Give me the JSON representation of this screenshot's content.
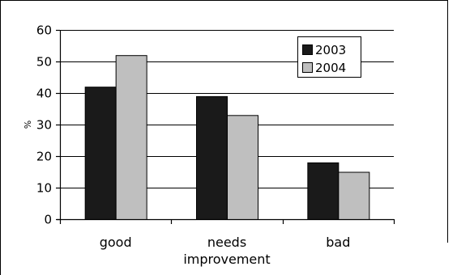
{
  "chart_data": {
    "type": "bar",
    "title": "",
    "xlabel": "",
    "ylabel": "%",
    "categories": [
      "good",
      "needs improvement",
      "bad"
    ],
    "category_lines": [
      [
        "good"
      ],
      [
        "needs",
        "improvement"
      ],
      [
        "bad"
      ]
    ],
    "series": [
      {
        "name": "2003",
        "values": [
          42,
          39,
          18
        ],
        "color": "#1a1a1a"
      },
      {
        "name": "2004",
        "values": [
          52,
          33,
          15
        ],
        "color": "#bfbfbf"
      }
    ],
    "ylim": [
      0,
      60
    ],
    "yticks": [
      0,
      10,
      20,
      30,
      40,
      50,
      60
    ],
    "grid": true,
    "legend_position": "top-right"
  }
}
